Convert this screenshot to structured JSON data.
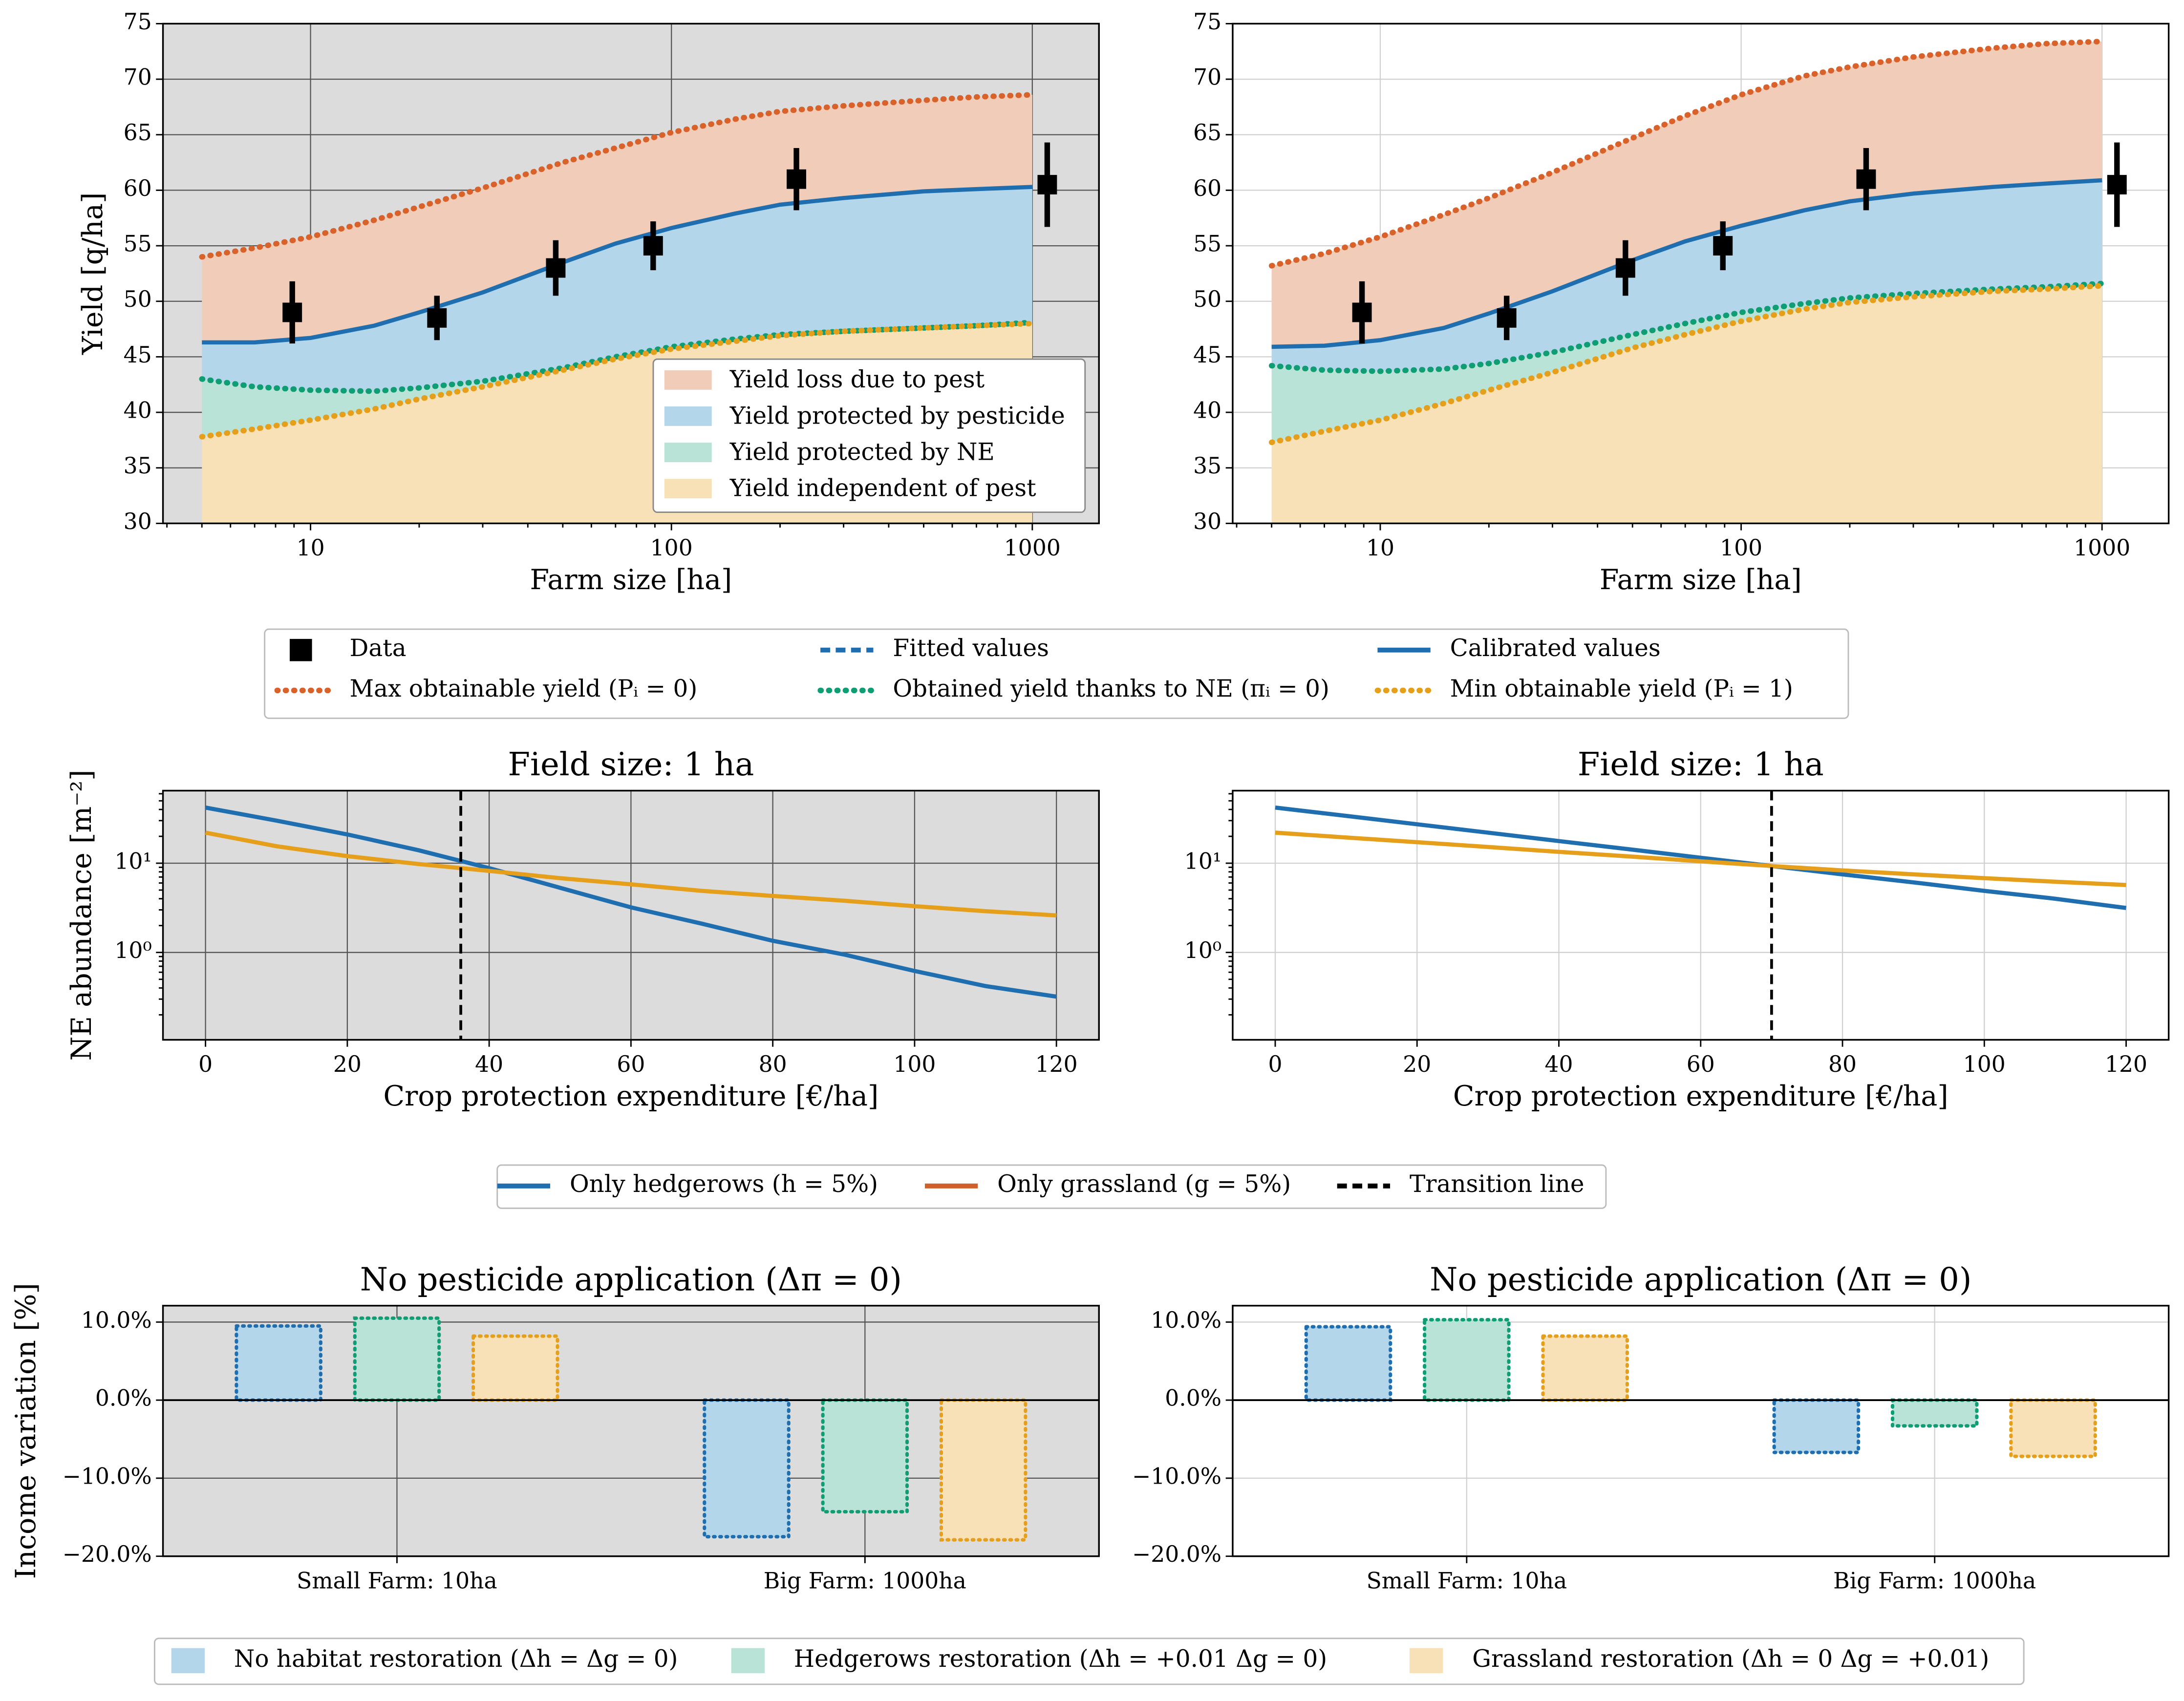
{
  "chart_data": [
    {
      "type": "area",
      "xlabel": "Farm size [ha]",
      "ylabel": "Yield [q/ha]",
      "xscale": "log",
      "xlim": [
        3.9,
        1530
      ],
      "xticks": [
        10,
        100,
        1000
      ],
      "ylim": [
        30,
        75
      ],
      "yticks": [
        30,
        35,
        40,
        45,
        50,
        55,
        60,
        65,
        70,
        75
      ],
      "grid": true,
      "background": "#dcdcdc",
      "grid_color": "#555555",
      "x": [
        5,
        7,
        10,
        15,
        20,
        30,
        50,
        70,
        100,
        150,
        200,
        300,
        500,
        700,
        1000
      ],
      "series": [
        {
          "color": "#d9622b",
          "style": "dotted",
          "values": [
            54.0,
            54.8,
            55.8,
            57.3,
            58.5,
            60.2,
            62.5,
            63.8,
            65.2,
            66.4,
            67.1,
            67.6,
            68.1,
            68.4,
            68.6
          ]
        },
        {
          "color": "#1f6fb0",
          "style": "solid",
          "values": [
            46.3,
            46.3,
            46.7,
            47.8,
            49.0,
            50.8,
            53.5,
            55.2,
            56.6,
            57.9,
            58.7,
            59.3,
            59.9,
            60.1,
            60.3
          ]
        },
        {
          "color": "#0f9d74",
          "style": "dotted",
          "values": [
            43.0,
            42.3,
            42.0,
            41.9,
            42.2,
            42.8,
            44.0,
            45.0,
            45.9,
            46.6,
            47.0,
            47.3,
            47.6,
            47.8,
            48.1
          ]
        },
        {
          "color": "#e69f1b",
          "style": "dotted",
          "values": [
            37.8,
            38.5,
            39.3,
            40.3,
            41.2,
            42.3,
            43.8,
            44.8,
            45.7,
            46.4,
            46.9,
            47.3,
            47.6,
            47.8,
            48.0
          ]
        }
      ],
      "fills": [
        "#f1cdb9",
        "#b3d6ea",
        "#b8e3d6",
        "#f8e1b7"
      ],
      "points": {
        "color": "#000000",
        "x": [
          8.9,
          22.4,
          47.8,
          89,
          222,
          1100
        ],
        "values": [
          49,
          48.5,
          53,
          55,
          61,
          60.5
        ],
        "errors": [
          2.8,
          2,
          2.5,
          2.2,
          2.8,
          3.8
        ]
      },
      "legend": {
        "loc": "lower right",
        "labels": [
          "Yield loss due to pest",
          "Yield protected by pesticide",
          "Yield protected by NE",
          "Yield independent of pest"
        ]
      }
    },
    {
      "type": "area",
      "xlabel": "Farm size [ha]",
      "xscale": "log",
      "xlim": [
        3.9,
        1530
      ],
      "xticks": [
        10,
        100,
        1000
      ],
      "ylim": [
        30,
        75
      ],
      "yticks": [
        30,
        35,
        40,
        45,
        50,
        55,
        60,
        65,
        70,
        75
      ],
      "grid": true,
      "background": "#ffffff",
      "grid_color": "#d0d0d0",
      "x": [
        5,
        7,
        10,
        15,
        20,
        30,
        50,
        70,
        100,
        150,
        200,
        300,
        500,
        700,
        1000
      ],
      "series": [
        {
          "color": "#d9622b",
          "style": "dotted",
          "values": [
            53.2,
            54.3,
            55.8,
            57.8,
            59.3,
            61.6,
            64.7,
            66.7,
            68.6,
            70.3,
            71.1,
            72.0,
            72.8,
            73.2,
            73.4
          ]
        },
        {
          "color": "#1f6fb0",
          "style": "solid",
          "values": [
            45.9,
            46.0,
            46.5,
            47.6,
            48.9,
            50.9,
            53.7,
            55.4,
            56.8,
            58.2,
            59.0,
            59.7,
            60.3,
            60.6,
            60.9
          ]
        },
        {
          "color": "#0f9d74",
          "style": "dotted",
          "values": [
            44.2,
            43.8,
            43.7,
            43.9,
            44.4,
            45.4,
            47.0,
            48.0,
            49.0,
            49.8,
            50.3,
            50.7,
            51.1,
            51.3,
            51.6
          ]
        },
        {
          "color": "#e69f1b",
          "style": "dotted",
          "values": [
            37.3,
            38.3,
            39.3,
            40.8,
            42.0,
            43.6,
            45.8,
            47.0,
            48.2,
            49.3,
            49.9,
            50.4,
            50.9,
            51.1,
            51.4
          ]
        }
      ],
      "fills": [
        "#f1cdb9",
        "#b3d6ea",
        "#b8e3d6",
        "#f8e1b7"
      ],
      "points": {
        "color": "#000000",
        "x": [
          8.9,
          22.4,
          47.8,
          89,
          222,
          1100
        ],
        "values": [
          49,
          48.5,
          53,
          55,
          61,
          60.5
        ],
        "errors": [
          2.8,
          2,
          2.5,
          2.2,
          2.8,
          3.8
        ]
      }
    },
    {
      "type": "line",
      "title": "Field size: 1 ha",
      "xlabel": "Crop protection expenditure [€/ha]",
      "ylabel": "NE abundance [m⁻²]",
      "xlim": [
        -6,
        126
      ],
      "xticks": [
        0,
        20,
        40,
        60,
        80,
        100,
        120
      ],
      "yscale": "log",
      "ylim": [
        0.105,
        65
      ],
      "yticks": [
        {
          "value": 1,
          "label": "10⁰"
        },
        {
          "value": 10,
          "label": "10¹"
        }
      ],
      "grid": true,
      "background": "#dcdcdc",
      "grid_color": "#555555",
      "x": [
        0,
        10,
        20,
        30,
        40,
        50,
        60,
        70,
        80,
        90,
        100,
        110,
        120
      ],
      "series": [
        {
          "color": "#1f6fb0",
          "style": "solid",
          "values": [
            42,
            30,
            21,
            14,
            8.8,
            5.3,
            3.2,
            2.1,
            1.35,
            0.95,
            0.62,
            0.42,
            0.32
          ]
        },
        {
          "color": "#e69f1b",
          "style": "solid",
          "values": [
            22,
            15.5,
            12,
            9.8,
            8.2,
            6.8,
            5.8,
            4.9,
            4.3,
            3.8,
            3.3,
            2.9,
            2.6
          ]
        }
      ],
      "vline": {
        "value": 36,
        "color": "#000000",
        "style": "dashed"
      }
    },
    {
      "type": "line",
      "title": "Field size: 1 ha",
      "xlabel": "Crop protection expenditure [€/ha]",
      "xlim": [
        -6,
        126
      ],
      "xticks": [
        0,
        20,
        40,
        60,
        80,
        100,
        120
      ],
      "yscale": "log",
      "ylim": [
        0.105,
        65
      ],
      "yticks": [
        {
          "value": 1,
          "label": "10⁰"
        },
        {
          "value": 10,
          "label": "10¹"
        }
      ],
      "grid": true,
      "background": "#ffffff",
      "grid_color": "#d0d0d0",
      "x": [
        0,
        10,
        20,
        30,
        40,
        50,
        60,
        70,
        80,
        90,
        100,
        110,
        120
      ],
      "series": [
        {
          "color": "#1f6fb0",
          "style": "solid",
          "values": [
            42,
            33.9,
            27.3,
            22,
            17.7,
            14.3,
            11.5,
            9.3,
            7.5,
            6.1,
            4.9,
            4.0,
            3.15
          ]
        },
        {
          "color": "#e69f1b",
          "style": "solid",
          "values": [
            22,
            19.4,
            17.2,
            15.2,
            13.4,
            11.9,
            10.5,
            9.3,
            8.3,
            7.5,
            6.8,
            6.2,
            5.7
          ]
        }
      ],
      "vline": {
        "value": 70,
        "color": "#000000",
        "style": "dashed"
      }
    },
    {
      "type": "bar",
      "title": "No pesticide application (Δπ = 0)",
      "ylabel": "Income variation [%]",
      "categories": [
        "Small Farm: 10ha",
        "Big Farm: 1000ha"
      ],
      "ylim": [
        -20,
        12.1
      ],
      "yticks": [
        {
          "value": -20,
          "label": "−20.0%"
        },
        {
          "value": -10,
          "label": "−10.0%"
        },
        {
          "value": 0,
          "label": "0.0%"
        },
        {
          "value": 10,
          "label": "10.0%"
        }
      ],
      "grid": true,
      "background": "#dcdcdc",
      "grid_color": "#555555",
      "zero_line": true,
      "series": [
        {
          "color": "#1f6fb0",
          "fill": "#b3d6ea",
          "values": [
            9.5,
            -17.5
          ]
        },
        {
          "color": "#0f9d74",
          "fill": "#b8e3d6",
          "values": [
            10.5,
            -14.3
          ]
        },
        {
          "color": "#e69f1b",
          "fill": "#f8e1b7",
          "values": [
            8.2,
            -17.9
          ]
        }
      ]
    },
    {
      "type": "bar",
      "title": "No pesticide application (Δπ = 0)",
      "categories": [
        "Small Farm: 10ha",
        "Big Farm: 1000ha"
      ],
      "ylim": [
        -20,
        12.1
      ],
      "yticks": [
        {
          "value": -20,
          "label": "−20.0%"
        },
        {
          "value": -10,
          "label": "−10.0%"
        },
        {
          "value": 0,
          "label": "0.0%"
        },
        {
          "value": 10,
          "label": "10.0%"
        }
      ],
      "grid": true,
      "background": "#ffffff",
      "grid_color": "#d0d0d0",
      "zero_line": true,
      "series": [
        {
          "color": "#1f6fb0",
          "fill": "#b3d6ea",
          "values": [
            9.4,
            -6.7
          ]
        },
        {
          "color": "#0f9d74",
          "fill": "#b8e3d6",
          "values": [
            10.3,
            -3.3
          ]
        },
        {
          "color": "#e69f1b",
          "fill": "#f8e1b7",
          "values": [
            8.2,
            -7.2
          ]
        }
      ]
    }
  ],
  "legends": [
    {
      "items": [
        {
          "name": "Data",
          "color": "#000000",
          "style": "marker"
        },
        {
          "name": "Fitted values",
          "color": "#1f6fb0",
          "style": "dashed"
        },
        {
          "name": "Calibrated values",
          "color": "#1f6fb0",
          "style": "solid"
        },
        {
          "name": "Max obtainable yield (Pᵢ = 0)",
          "color": "#d9622b",
          "style": "dotted"
        },
        {
          "name": "Obtained yield thanks to NE (πᵢ = 0)",
          "color": "#0f9d74",
          "style": "dotted"
        },
        {
          "name": "Min obtainable yield (Pᵢ = 1)",
          "color": "#e69f1b",
          "style": "dotted"
        }
      ]
    },
    {
      "items": [
        {
          "name": "Only hedgerows (h = 5%)",
          "color": "#1f6fb0",
          "style": "solid"
        },
        {
          "name": "Only grassland (g = 5%)",
          "color": "#d0602a",
          "style": "solid"
        },
        {
          "name": "Transition line",
          "color": "#000000",
          "style": "dashed"
        }
      ]
    },
    {
      "items": [
        {
          "name": "No habitat restoration (Δh = Δg = 0)",
          "color": "#b3d6ea",
          "style": "patch"
        },
        {
          "name": "Hedgerows restoration (Δh = +0.01   Δg = 0)",
          "color": "#b8e3d6",
          "style": "patch"
        },
        {
          "name": "Grassland restoration (Δh = 0   Δg = +0.01)",
          "color": "#f8e1b7",
          "style": "patch"
        }
      ]
    }
  ]
}
